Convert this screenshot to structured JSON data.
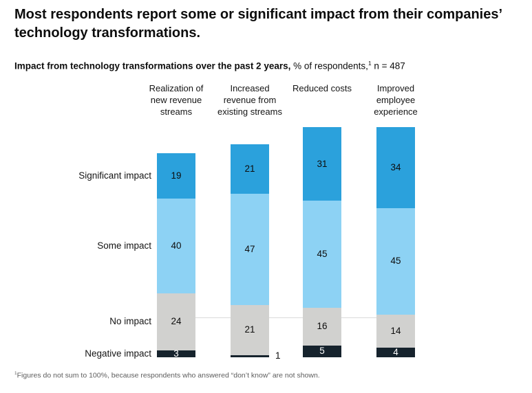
{
  "title": "Most respondents report some or significant impact from their companies’ technology transformations.",
  "subtitle": {
    "bold": "Impact from technology transformations over the past 2 years,",
    "regular_before_sup": " % of respondents,",
    "sup": "1",
    "regular_after_sup": " n = 487"
  },
  "footnote": {
    "sup": "1",
    "text": "Figures do not sum to 100%, because respondents who answered “don’t know” are not shown."
  },
  "chart_data": {
    "type": "bar",
    "stacked": true,
    "orientation": "vertical",
    "title": "Impact from technology transformations over the past 2 years",
    "unit": "% of respondents",
    "n": 487,
    "value_labels": "inside segments, centered; values too small to fit are labeled outside right",
    "legend_position": "row labels at left, aligned to first bar segments",
    "axes": "none shown; bars share a common baseline",
    "categories": [
      "Realization of new revenue streams",
      "Increased revenue from existing streams",
      "Reduced costs",
      "Improved employee experience"
    ],
    "series": [
      {
        "name": "Significant impact",
        "color": "#2BA1DC",
        "label_color": "#0d0d0d",
        "values": [
          19,
          21,
          31,
          34
        ]
      },
      {
        "name": "Some impact",
        "color": "#8DD2F4",
        "label_color": "#0d0d0d",
        "values": [
          40,
          47,
          45,
          45
        ]
      },
      {
        "name": "No impact",
        "color": "#D1D1CF",
        "label_color": "#0d0d0d",
        "values": [
          24,
          21,
          16,
          14
        ]
      },
      {
        "name": "Negative impact",
        "color": "#16232D",
        "label_color": "#ffffff",
        "values": [
          3,
          1,
          5,
          4
        ]
      }
    ]
  }
}
